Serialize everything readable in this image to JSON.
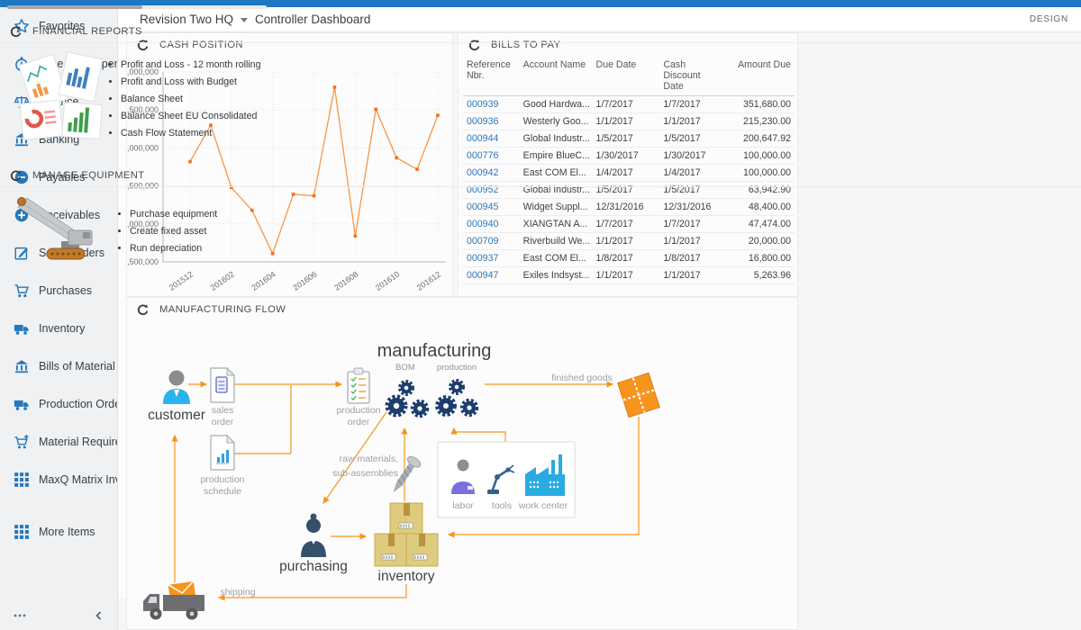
{
  "colors": {
    "topbar": "#1d77c2",
    "accent_blue": "#2478bd",
    "link_blue": "#2e76b5",
    "flow_orange": "#f7941d",
    "chart_line": "#f79646",
    "chart_marker": "#f26f21",
    "gear_navy": "#1d3e6d"
  },
  "header": {
    "company": "Revision Two HQ",
    "dashboard": "Controller Dashboard",
    "design_label": "DESIGN"
  },
  "sidebar": {
    "items": [
      {
        "label": "Favorites",
        "icon": "star"
      },
      {
        "label": "Time and Expenses",
        "icon": "clock"
      },
      {
        "label": "Finance",
        "icon": "scales"
      },
      {
        "label": "Banking",
        "icon": "bank"
      },
      {
        "label": "Payables",
        "icon": "minus"
      },
      {
        "label": "Receivables",
        "icon": "plus"
      },
      {
        "label": "Sales Orders",
        "icon": "edit"
      },
      {
        "label": "Purchases",
        "icon": "cart"
      },
      {
        "label": "Inventory",
        "icon": "truck"
      },
      {
        "label": "Bills of Material",
        "icon": "bank"
      },
      {
        "label": "Production Orders",
        "icon": "truck"
      },
      {
        "label": "Material Requirem...",
        "icon": "cartplus"
      },
      {
        "label": "MaxQ Matrix Invent...",
        "icon": "grid"
      },
      {
        "label": "More Items",
        "icon": "grid",
        "gap": true
      }
    ]
  },
  "widgets": {
    "cash_position": {
      "title": "CASH POSITION"
    },
    "bills_to_pay": {
      "title": "BILLS TO PAY",
      "columns": [
        "Reference Nbr.",
        "Account Name",
        "Due Date",
        "Cash Discount Date",
        "Amount Due"
      ],
      "rows": [
        [
          "000939",
          "Good Hardwa...",
          "1/7/2017",
          "1/7/2017",
          "351,680.00"
        ],
        [
          "000936",
          "Westerly Goo...",
          "1/1/2017",
          "1/1/2017",
          "215,230.00"
        ],
        [
          "000944",
          "Global Industr...",
          "1/5/2017",
          "1/5/2017",
          "200,647.92"
        ],
        [
          "000776",
          "Empire BlueC...",
          "1/30/2017",
          "1/30/2017",
          "100,000.00"
        ],
        [
          "000942",
          "East COM El...",
          "1/4/2017",
          "1/4/2017",
          "100,000.00"
        ],
        [
          "000952",
          "Global Industr...",
          "1/5/2017",
          "1/5/2017",
          "63,942.90"
        ],
        [
          "000945",
          "Widget Suppl...",
          "12/31/2016",
          "12/31/2016",
          "48,400.00"
        ],
        [
          "000940",
          "XIANGTAN A...",
          "1/7/2017",
          "1/7/2017",
          "47,474.00"
        ],
        [
          "000709",
          "Riverbuild We...",
          "1/1/2017",
          "1/1/2017",
          "20,000.00"
        ],
        [
          "000937",
          "East COM El...",
          "1/8/2017",
          "1/8/2017",
          "16,800.00"
        ],
        [
          "000947",
          "Exiles Indsyst...",
          "1/1/2017",
          "1/1/2017",
          "5,263.96"
        ]
      ]
    },
    "financial_reports": {
      "title": "FINANCIAL REPORTS",
      "links": [
        "Profit and Loss - 12 month rolling",
        "Profit and Loss with Budget",
        "Balance Sheet",
        "Balance Sheet EU Consolidated",
        "Cash Flow Statement"
      ]
    },
    "manage_equipment": {
      "title": "MANAGE EQUIPMENT",
      "links": [
        "Purchase equipment",
        "Create fixed asset",
        "Run depreciation"
      ]
    },
    "manufacturing_flow": {
      "title": "MANUFACTURING FLOW",
      "diagram": {
        "title": "manufacturing",
        "labels": {
          "bom": "BOM",
          "production": "production",
          "customer": "customer",
          "sales_order_1": "sales",
          "sales_order_2": "order",
          "production_schedule_1": "production",
          "production_schedule_2": "schedule",
          "production_order_1": "production",
          "production_order_2": "order",
          "finished_goods": "finished goods",
          "raw_materials_1": "raw materials,",
          "raw_materials_2": "sub-assemblies",
          "labor": "labor",
          "tools": "tools",
          "work_center": "work center",
          "purchasing": "purchasing",
          "inventory": "inventory",
          "shipping": "shipping"
        }
      }
    }
  },
  "chart_data": {
    "type": "line",
    "title": "Cash Position",
    "x": [
      "201512",
      "201601",
      "201602",
      "201603",
      "201604",
      "201605",
      "201606",
      "201607",
      "201608",
      "201609",
      "201610",
      "201611",
      "201612"
    ],
    "values": [
      63820000,
      64300000,
      63480000,
      63180000,
      62610000,
      63390000,
      63370000,
      64800000,
      62840000,
      64510000,
      63870000,
      63720000,
      64430000
    ],
    "x_tick_labels": [
      "201512",
      "201602",
      "201604",
      "201606",
      "201608",
      "201610",
      "201612"
    ],
    "ylim": [
      62500000,
      65000000
    ],
    "y_tick_step": 500000,
    "xlabel": "",
    "ylabel": "",
    "grid": true,
    "legend": "none"
  }
}
